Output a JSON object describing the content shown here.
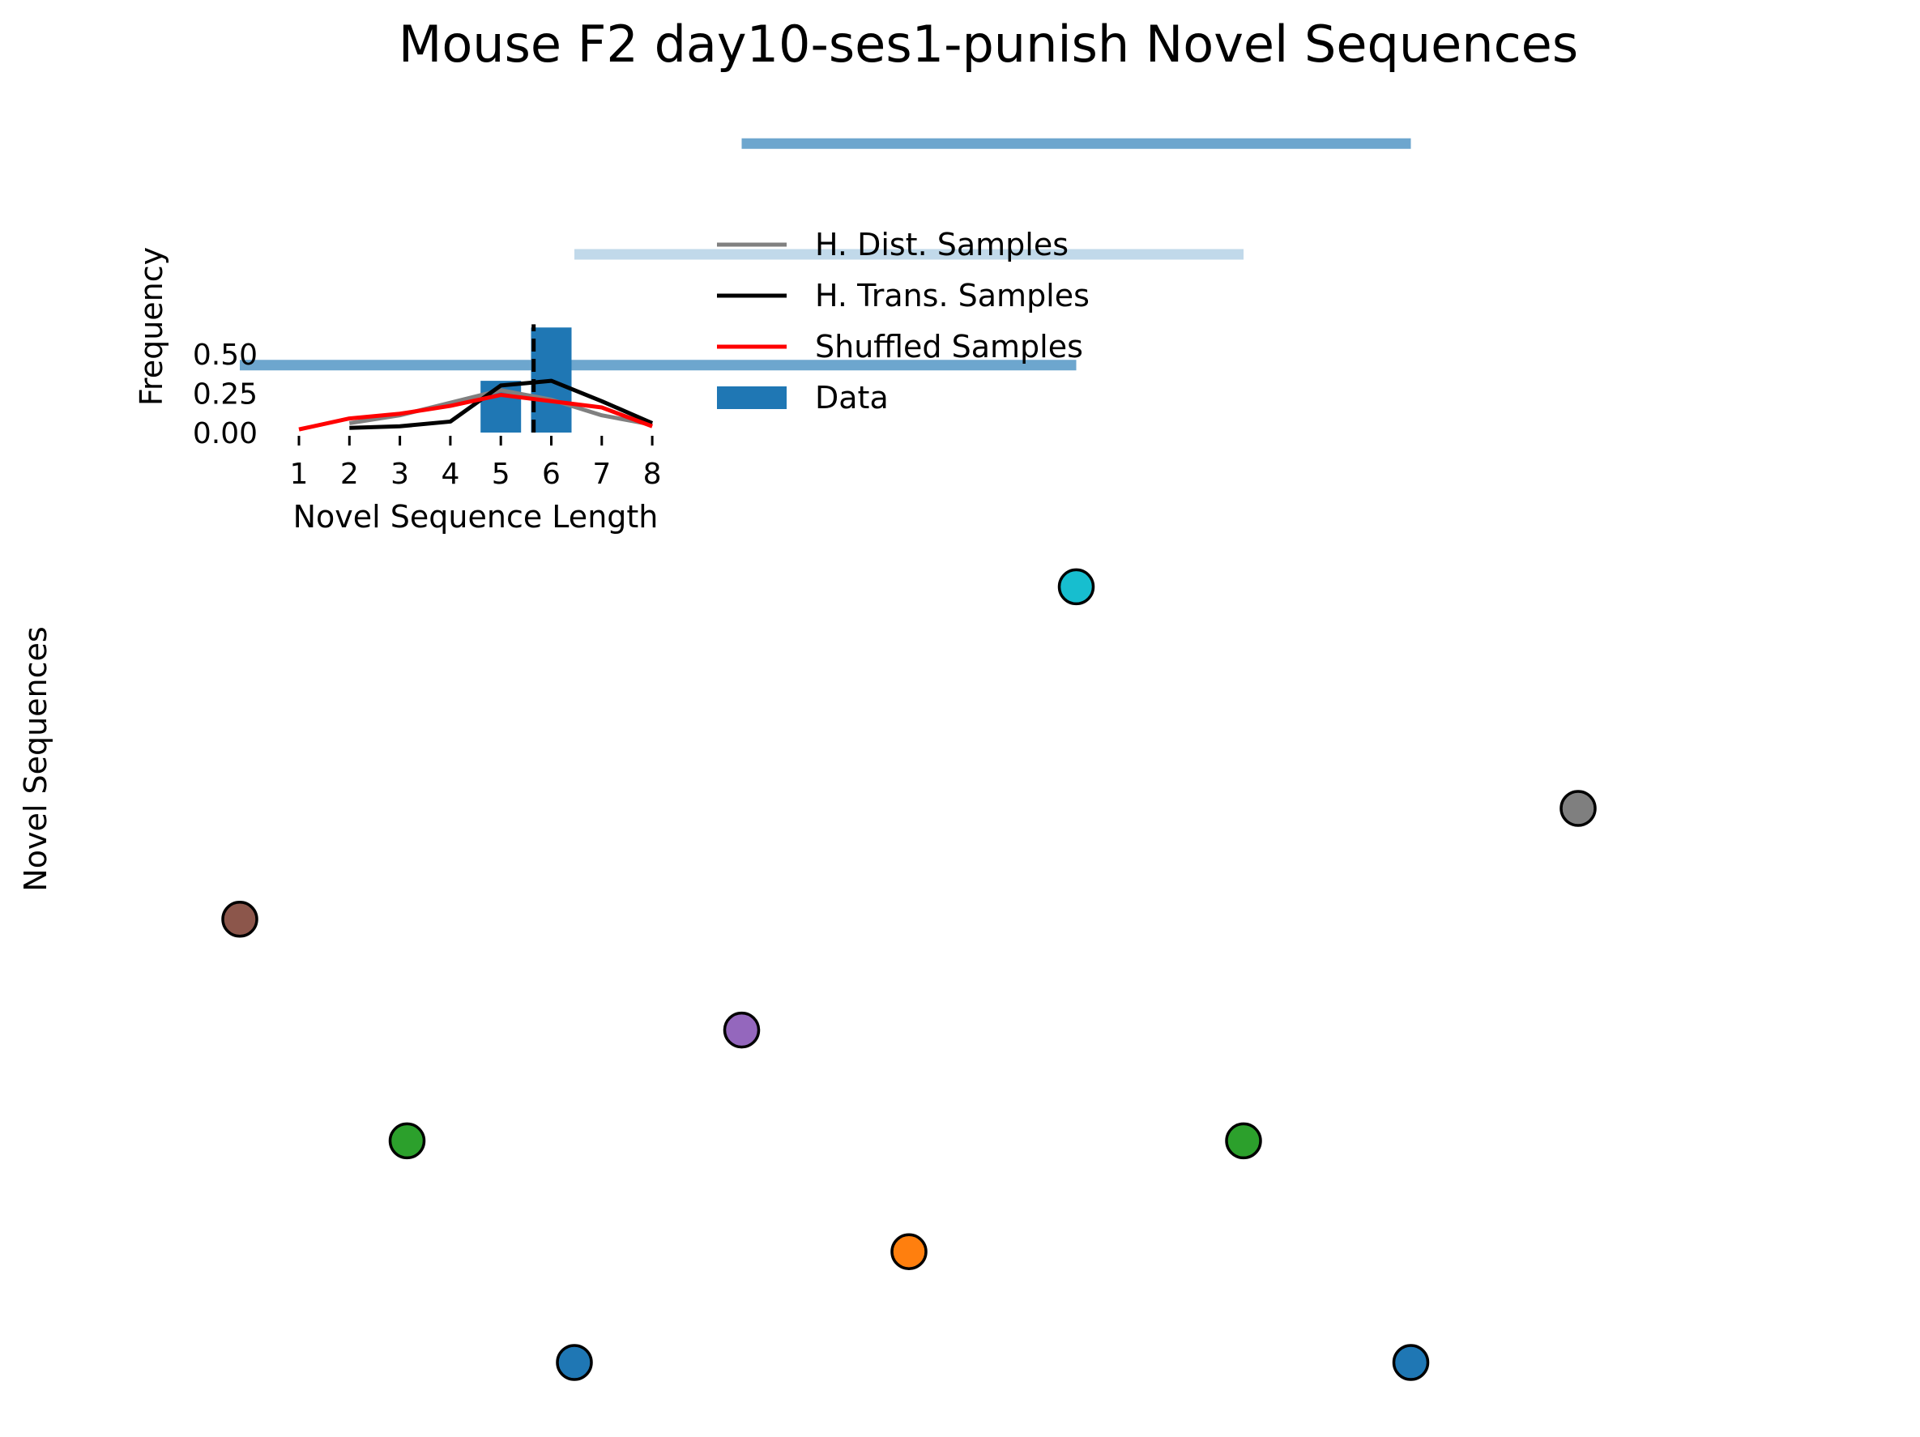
{
  "chart_data": [
    {
      "type": "scatter",
      "title": "Mouse F2 day10-ses1-punish Novel Sequences",
      "ylabel": "Novel Sequences",
      "xlim": [
        0.5,
        9.5
      ],
      "ylim": [
        0.5,
        8.2
      ],
      "grid": false,
      "nodes": [
        {
          "x": 1,
          "y": 4,
          "color": "#8c564b"
        },
        {
          "x": 2,
          "y": 2,
          "color": "#2ca02c"
        },
        {
          "x": 3,
          "y": 0,
          "color": "#1f77b4"
        },
        {
          "x": 4,
          "y": 3,
          "color": "#9467bd"
        },
        {
          "x": 5,
          "y": 1,
          "color": "#ff7f0e"
        },
        {
          "x": 6,
          "y": 7,
          "color": "#17becf"
        },
        {
          "x": 7,
          "y": 2,
          "color": "#2ca02c"
        },
        {
          "x": 8,
          "y": 0,
          "color": "#1f77b4"
        },
        {
          "x": 9,
          "y": 5,
          "color": "#7f7f7f"
        }
      ],
      "bars": [
        {
          "x_start": 4.0,
          "x_end": 8.0,
          "y": 11.0,
          "color": "#1f77b4",
          "opacity": 0.65
        },
        {
          "x_start": 3.0,
          "x_end": 7.0,
          "y": 10.0,
          "color": "#1f77b4",
          "opacity": 0.28
        },
        {
          "x_start": 1.0,
          "x_end": 6.0,
          "y": 9.0,
          "color": "#1f77b4",
          "opacity": 0.65
        }
      ]
    },
    {
      "type": "bar",
      "xlabel": "Novel Sequence Length",
      "ylabel": "Frequency",
      "categories": [
        1,
        2,
        3,
        4,
        5,
        6,
        7,
        8
      ],
      "xlim": [
        0.7,
        8.3
      ],
      "ylim": [
        0,
        0.71
      ],
      "yticks": [
        "0.00",
        "0.25",
        "0.50"
      ],
      "mean_line_x": 5.65,
      "series": [
        {
          "name": "Data",
          "kind": "bar",
          "color": "#1f77b4",
          "values": [
            0,
            0,
            0,
            0,
            0.33,
            0.67,
            0,
            0
          ]
        },
        {
          "name": "H. Dist. Samples",
          "kind": "line",
          "color": "#808080",
          "x": [
            2,
            3,
            4,
            5,
            6,
            7,
            8
          ],
          "values": [
            0.06,
            0.11,
            0.19,
            0.27,
            0.21,
            0.11,
            0.05
          ]
        },
        {
          "name": "H. Trans. Samples",
          "kind": "line",
          "color": "#000000",
          "x": [
            2,
            3,
            4,
            5,
            6,
            7,
            8
          ],
          "values": [
            0.03,
            0.04,
            0.07,
            0.3,
            0.33,
            0.2,
            0.06
          ]
        },
        {
          "name": "Shuffled Samples",
          "kind": "line",
          "color": "#ff0000",
          "x": [
            1,
            2,
            3,
            4,
            5,
            6,
            7,
            8
          ],
          "values": [
            0.02,
            0.09,
            0.12,
            0.17,
            0.24,
            0.2,
            0.16,
            0.04
          ]
        }
      ],
      "legend": {
        "placement": "top-right",
        "entries": [
          "H. Dist. Samples",
          "H. Trans. Samples",
          "Shuffled Samples",
          "Data"
        ]
      }
    }
  ]
}
